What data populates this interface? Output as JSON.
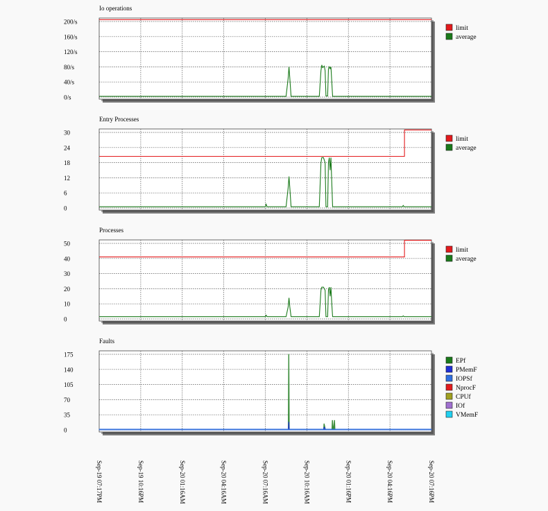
{
  "colors": {
    "background": "#f9f9f9",
    "plot_bg": "#ffffff",
    "grid": "#555555",
    "limit": "#e31a1c",
    "average": "#1a7a1a",
    "shadow": "#1a1a1a"
  },
  "x_axis": {
    "ticks": [
      "Sep-19 07:17PM",
      "Sep-19 10:16PM",
      "Sep-20 01:16AM",
      "Sep-20 04:16AM",
      "Sep-20 07:16AM",
      "Sep-20 10:16AM",
      "Sep-20 01:16PM",
      "Sep-20 04:16PM",
      "Sep-20 07:16PM"
    ]
  },
  "chart_data": [
    {
      "type": "line",
      "title": "Io operations",
      "yticks": [
        "200/s",
        "160/s",
        "120/s",
        "80/s",
        "40/s",
        "0/s"
      ],
      "ylim": [
        0,
        200
      ],
      "grid": true,
      "legend_position": "right",
      "series": [
        {
          "name": "limit",
          "color": "#e31a1c",
          "x": [
            0,
            8
          ],
          "y": [
            205,
            205
          ]
        },
        {
          "name": "average",
          "color": "#1a7a1a",
          "fill": false,
          "x": [
            0,
            4.5,
            4.55,
            4.57,
            4.59,
            4.62,
            5.3,
            5.34,
            5.36,
            5.38,
            5.42,
            5.44,
            5.46,
            5.5,
            5.52,
            5.54,
            5.56,
            5.58,
            5.6,
            5.62,
            8
          ],
          "y": [
            2,
            2,
            50,
            80,
            50,
            2,
            2,
            70,
            85,
            78,
            82,
            70,
            3,
            3,
            75,
            80,
            75,
            80,
            40,
            2,
            2
          ]
        }
      ]
    },
    {
      "type": "line",
      "title": "Entry Processes",
      "yticks": [
        "30",
        "24",
        "18",
        "12",
        "6",
        "0"
      ],
      "ylim": [
        0,
        30
      ],
      "grid": true,
      "legend_position": "right",
      "series": [
        {
          "name": "limit",
          "color": "#e31a1c",
          "x": [
            0,
            7.35,
            7.35,
            8
          ],
          "y": [
            20.5,
            20.5,
            31,
            31
          ]
        },
        {
          "name": "average",
          "color": "#1a7a1a",
          "fill": false,
          "x": [
            0,
            4.0,
            4.02,
            4.04,
            4.5,
            4.55,
            4.57,
            4.59,
            4.62,
            5.3,
            5.34,
            5.36,
            5.4,
            5.44,
            5.46,
            5.5,
            5.52,
            5.54,
            5.56,
            5.58,
            5.6,
            5.62,
            7.3,
            7.32,
            7.34,
            8
          ],
          "y": [
            0.5,
            0.5,
            1.5,
            0.5,
            0.5,
            8,
            12.5,
            8,
            0.5,
            0.5,
            18,
            20,
            20,
            18,
            0.5,
            0.5,
            18,
            20,
            15,
            20,
            10,
            0.5,
            0.5,
            1,
            0.5,
            0.5
          ]
        }
      ]
    },
    {
      "type": "line",
      "title": "Processes",
      "yticks": [
        "50",
        "40",
        "30",
        "20",
        "10",
        "0"
      ],
      "ylim": [
        0,
        50
      ],
      "grid": true,
      "legend_position": "right",
      "series": [
        {
          "name": "limit",
          "color": "#e31a1c",
          "x": [
            0,
            7.35,
            7.35,
            8
          ],
          "y": [
            41,
            41,
            52,
            52
          ]
        },
        {
          "name": "average",
          "color": "#1a7a1a",
          "fill": false,
          "x": [
            0,
            4.0,
            4.02,
            4.04,
            4.5,
            4.55,
            4.57,
            4.59,
            4.62,
            5.3,
            5.34,
            5.36,
            5.4,
            5.44,
            5.46,
            5.5,
            5.52,
            5.54,
            5.56,
            5.58,
            5.6,
            5.62,
            7.3,
            7.32,
            7.34,
            8
          ],
          "y": [
            1.5,
            1.5,
            2.5,
            1.5,
            1.5,
            8,
            14,
            8,
            1.5,
            1.5,
            19,
            21,
            21,
            19,
            1.5,
            1.5,
            19,
            21,
            15,
            21,
            10,
            1.5,
            1.5,
            2,
            1.5,
            1.5
          ]
        }
      ]
    },
    {
      "type": "area",
      "title": "Faults",
      "yticks": [
        "175",
        "140",
        "105",
        "70",
        "35",
        "0"
      ],
      "ylim": [
        0,
        175
      ],
      "grid": true,
      "legend_position": "right",
      "series": [
        {
          "name": "EPf",
          "color": "#1a7a1a",
          "fill": true,
          "x": [
            0,
            4.55,
            4.56,
            4.57,
            4.58,
            5.4,
            5.41,
            5.42,
            5.43,
            5.45,
            5.6,
            5.61,
            5.62,
            5.64,
            5.66,
            5.67,
            5.68,
            8
          ],
          "y": [
            0,
            0,
            175,
            175,
            0,
            0,
            14,
            14,
            10,
            0,
            0,
            22,
            22,
            0,
            22,
            22,
            0,
            0
          ]
        },
        {
          "name": "PMemF",
          "color": "#1f2fd6",
          "fill": true,
          "x": [
            0,
            4.55,
            4.56,
            4.57,
            4.58,
            5.4,
            5.41,
            5.43,
            5.45,
            8
          ],
          "y": [
            0,
            0,
            18,
            18,
            0,
            0,
            6,
            6,
            0,
            0
          ]
        },
        {
          "name": "IOPSf",
          "color": "#2f6fe0",
          "fill": true,
          "x": [
            0,
            8
          ],
          "y": [
            2,
            2
          ]
        },
        {
          "name": "NprocF",
          "color": "#e31a1c",
          "fill": true,
          "x": [],
          "y": []
        },
        {
          "name": "CPUf",
          "color": "#a0a020",
          "fill": true,
          "x": [],
          "y": []
        },
        {
          "name": "IOf",
          "color": "#a070d0",
          "fill": true,
          "x": [],
          "y": []
        },
        {
          "name": "VMemF",
          "color": "#20d0f0",
          "fill": true,
          "x": [],
          "y": []
        }
      ]
    }
  ]
}
